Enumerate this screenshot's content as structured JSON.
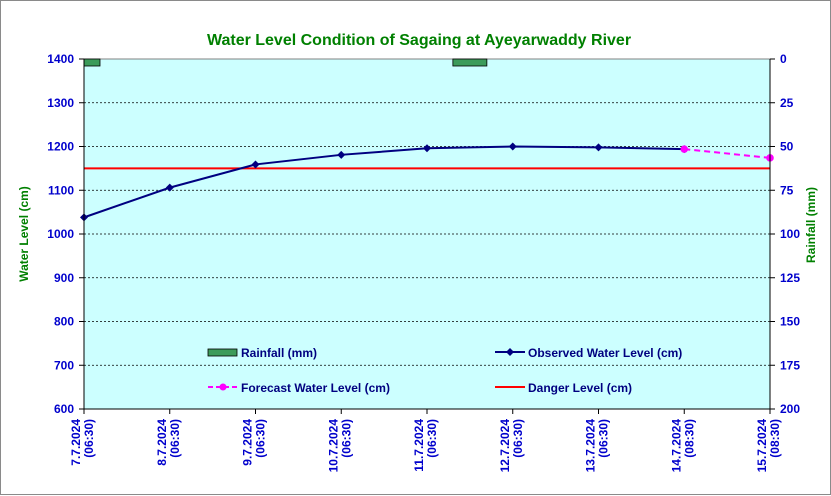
{
  "chart_data": {
    "type": "line",
    "title": "Water Level Condition of Sagaing at Ayeyarwaddy River",
    "ylabel": "Water Level (cm)",
    "y2label": "Rainfall (mm)",
    "ylim": [
      600,
      1400
    ],
    "yticks": [
      "1400",
      "1300",
      "1200",
      "1100",
      "1000",
      "900",
      "800",
      "700",
      "600"
    ],
    "y2lim": [
      0,
      200
    ],
    "y2ticks": [
      "0",
      "25",
      "50",
      "75",
      "100",
      "125",
      "150",
      "175",
      "200"
    ],
    "x_labels": [
      [
        "7.7.2024",
        "(06:30)"
      ],
      [
        "8.7.2024",
        "(06:30)"
      ],
      [
        "9.7.2024",
        "(06:30)"
      ],
      [
        "10.7.2024",
        "(06:30)"
      ],
      [
        "11.7.2024",
        "(06:30)"
      ],
      [
        "12.7.2024",
        "(06:30)"
      ],
      [
        "13.7.2024",
        "(06:30)"
      ],
      [
        "14.7.2024",
        "(08:30)"
      ],
      [
        "15.7.2024",
        "(08:30)"
      ]
    ],
    "grid": true,
    "series": [
      {
        "name": "Observed Water Level (cm)",
        "color": "#000080",
        "marker": "diamond",
        "values": [
          1038,
          1106,
          1159,
          1181,
          1196,
          1200,
          1198,
          1194,
          null
        ]
      },
      {
        "name": "Forecast Water Level (cm)",
        "color": "#ff00ff",
        "marker": "circle",
        "dashed": true,
        "values": [
          null,
          null,
          null,
          null,
          null,
          null,
          null,
          1194,
          1174
        ]
      },
      {
        "name": "Danger Level (cm)",
        "color": "#ff0000",
        "constant": 1150
      },
      {
        "name": "Rainfall (mm)",
        "color": "#3c9b5a",
        "axis": "right",
        "type": "bar",
        "values": [
          {
            "between": [
              0,
              1
            ],
            "value": 4
          },
          {
            "between": [
              4,
              5
            ],
            "value": 4
          }
        ]
      }
    ],
    "legend": {
      "placement": "bottom-center",
      "items": [
        "Rainfall (mm)",
        "Observed Water Level (cm)",
        "Forecast Water Level (cm)",
        "Danger Level (cm)"
      ]
    },
    "colors": {
      "plot_background": "#ccffff",
      "title": "#008000",
      "ticks": "#0000cc"
    }
  }
}
